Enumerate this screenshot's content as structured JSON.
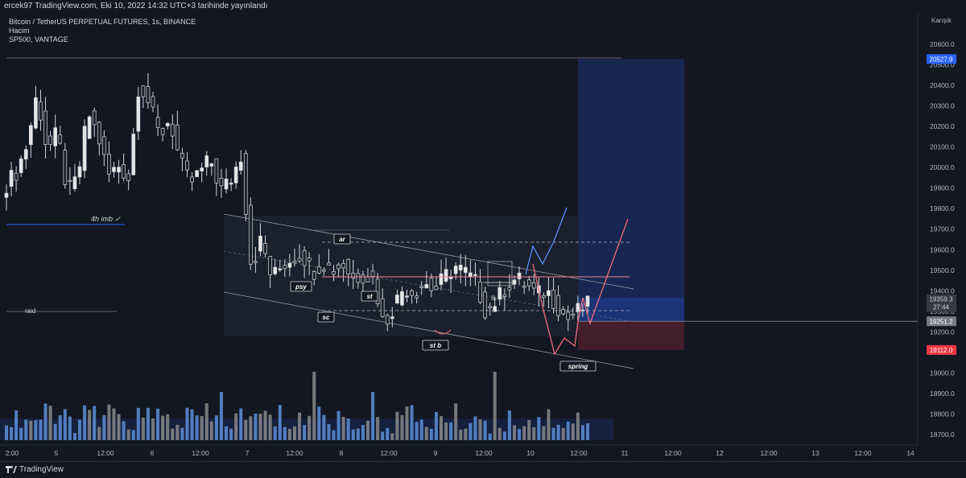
{
  "header": {
    "title": "ercek97 TradingView.com, Eki 10, 2022 14:32 UTC+3 tarihinde yayınlandı"
  },
  "legend": {
    "symbol": "Bitcoin / TetherUS PERPETUAL FUTURES, 1s, BINANCE",
    "volume": "Hacim",
    "indicator": "SP500, VANTAGE"
  },
  "price_axis": {
    "label": "Karışık",
    "ticks": [
      "20600.0",
      "20500.0",
      "20400.0",
      "20300.0",
      "20200.0",
      "20100.0",
      "20000.0",
      "19900.0",
      "19800.0",
      "19700.0",
      "19600.0",
      "19500.0",
      "19400.0",
      "19300.0",
      "19200.0",
      "19100.0",
      "19000.0",
      "18900.0",
      "18800.0",
      "18700.0"
    ],
    "badges": {
      "target": "20527.9",
      "current": "19359.3",
      "countdown": "27:44",
      "entry": "19251.2",
      "stop": "19112.0"
    }
  },
  "time_axis": {
    "ticks": [
      "2:00",
      "5",
      "12:00",
      "6",
      "12:00",
      "7",
      "12:00",
      "8",
      "12:00",
      "9",
      "12:00",
      "10",
      "12:00",
      "11",
      "12:00",
      "12",
      "12:00",
      "13",
      "12:00",
      "14"
    ]
  },
  "annotations": {
    "imb": "4h imb ✓",
    "raid": "raid",
    "ar": "ar",
    "psy": "psy",
    "sc": "sc",
    "st": "st",
    "stb": "st b",
    "il": "IL",
    "spring": "spring"
  },
  "footer": {
    "brand": "TradingView"
  },
  "colors": {
    "background": "#131722",
    "candle": "#d9d9d9",
    "candle_border": "#787b86",
    "volume_up": "#5d8fd8",
    "volume_down": "#8a8a8a",
    "target_zone": "#2962ff",
    "stop_zone": "#f23645",
    "path_up": "#5b8ff9",
    "path_down": "#ef6c7a"
  },
  "chart_data": {
    "type": "candlestick",
    "symbol": "Bitcoin / TetherUS PERPETUAL FUTURES",
    "interval": "1s",
    "exchange": "BINANCE",
    "ylim": [
      18650,
      20700
    ],
    "x_labels": [
      "2:00",
      "5",
      "12:00",
      "6",
      "12:00",
      "7",
      "12:00",
      "8",
      "12:00",
      "9",
      "12:00",
      "10",
      "12:00",
      "11",
      "12:00",
      "12",
      "12:00",
      "13",
      "12:00",
      "14"
    ],
    "key_levels": {
      "target": 20527.9,
      "current": 19359.3,
      "entry": 19251.2,
      "stop": 19112.0
    },
    "close_path": [
      19920,
      19980,
      20110,
      20360,
      20080,
      20170,
      19870,
      19950,
      20270,
      20150,
      19960,
      20010,
      19950,
      20420,
      20310,
      20150,
      20240,
      20030,
      19920,
      19980,
      20040,
      19890,
      19940,
      20060,
      19520,
      19650,
      19460,
      19520,
      19560,
      19580,
      19490,
      19540,
      19500,
      19530,
      19460,
      19480,
      19460,
      19230,
      19330,
      19420,
      19390,
      19440,
      19400,
      19470,
      19520,
      19490,
      19440,
      19300,
      19350,
      19420,
      19460,
      19430,
      19380,
      19400,
      19330,
      19260,
      19300,
      19330
    ]
  }
}
